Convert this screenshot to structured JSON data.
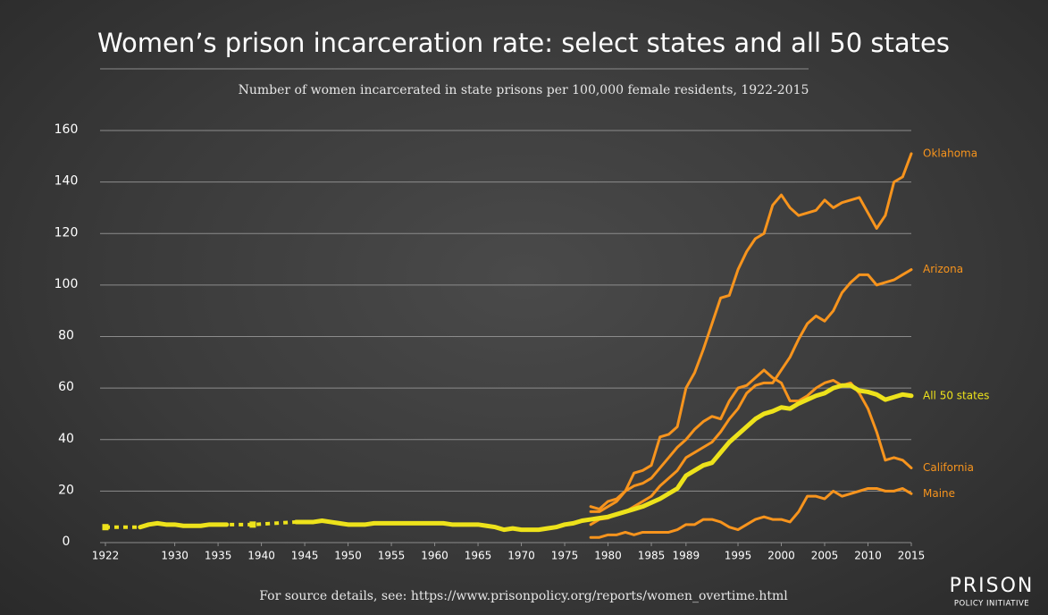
{
  "chart_data": {
    "type": "line",
    "title": "Women’s prison incarceration rate: select states and all 50 states",
    "subtitle": "Number of women incarcerated in state prisons per 100,000 female residents, 1922-2015",
    "note": "For source details, see: https://www.prisonpolicy.org/reports/women_overtime.html",
    "logo": {
      "name": "PRISON",
      "tagline": "POLICY INITIATIVE"
    },
    "xlim": [
      1922,
      2015
    ],
    "xticks": [
      1922,
      1930,
      1935,
      1940,
      1945,
      1950,
      1955,
      1960,
      1965,
      1970,
      1975,
      1980,
      1985,
      1989,
      1995,
      2000,
      2005,
      2010,
      2015
    ],
    "ylim": [
      0,
      160
    ],
    "yticks": [
      0,
      20,
      40,
      60,
      80,
      100,
      120,
      140,
      160
    ],
    "grid": true,
    "x": [
      1922,
      1923,
      1924,
      1925,
      1926,
      1927,
      1928,
      1929,
      1930,
      1931,
      1932,
      1933,
      1934,
      1935,
      1936,
      1937,
      1938,
      1939,
      1940,
      1941,
      1942,
      1943,
      1944,
      1945,
      1946,
      1947,
      1948,
      1949,
      1950,
      1951,
      1952,
      1953,
      1954,
      1955,
      1956,
      1957,
      1958,
      1959,
      1960,
      1961,
      1962,
      1963,
      1964,
      1965,
      1966,
      1967,
      1968,
      1969,
      1970,
      1971,
      1972,
      1973,
      1974,
      1975,
      1976,
      1977,
      1978,
      1979,
      1980,
      1981,
      1982,
      1983,
      1984,
      1985,
      1986,
      1987,
      1988,
      1989,
      1990,
      1991,
      1992,
      1993,
      1994,
      1995,
      1996,
      1997,
      1998,
      1999,
      2000,
      2001,
      2002,
      2003,
      2004,
      2005,
      2006,
      2007,
      2008,
      2009,
      2010,
      2011,
      2012,
      2013,
      2014,
      2015
    ],
    "series": [
      {
        "name": "Oklahoma",
        "color": "#f7941d",
        "width": 3,
        "values": [
          null,
          null,
          null,
          null,
          null,
          null,
          null,
          null,
          null,
          null,
          null,
          null,
          null,
          null,
          null,
          null,
          null,
          null,
          null,
          null,
          null,
          null,
          null,
          null,
          null,
          null,
          null,
          null,
          null,
          null,
          null,
          null,
          null,
          null,
          null,
          null,
          null,
          null,
          null,
          null,
          null,
          null,
          null,
          null,
          null,
          null,
          null,
          null,
          null,
          null,
          null,
          null,
          null,
          null,
          null,
          null,
          14,
          13,
          16,
          17,
          20,
          27,
          28,
          30,
          41,
          42,
          45,
          60,
          66,
          75,
          85,
          95,
          96,
          106,
          113,
          118,
          120,
          131,
          135,
          130,
          127,
          128,
          129,
          133,
          130,
          132,
          133,
          134,
          128,
          122,
          127,
          140,
          142,
          151
        ]
      },
      {
        "name": "Arizona",
        "color": "#f7941d",
        "width": 3,
        "values": [
          null,
          null,
          null,
          null,
          null,
          null,
          null,
          null,
          null,
          null,
          null,
          null,
          null,
          null,
          null,
          null,
          null,
          null,
          null,
          null,
          null,
          null,
          null,
          null,
          null,
          null,
          null,
          null,
          null,
          null,
          null,
          null,
          null,
          null,
          null,
          null,
          null,
          null,
          null,
          null,
          null,
          null,
          null,
          null,
          null,
          null,
          null,
          null,
          null,
          null,
          null,
          null,
          null,
          null,
          null,
          null,
          7,
          9,
          9.5,
          11,
          12,
          14,
          16,
          18,
          22,
          25,
          28,
          33,
          35,
          37,
          39,
          43,
          48,
          52,
          58,
          61,
          62,
          62,
          67,
          72,
          79,
          85,
          88,
          86,
          90,
          97,
          101,
          104,
          104,
          100,
          101,
          102,
          104,
          106
        ]
      },
      {
        "name": "California",
        "color": "#f7941d",
        "width": 3,
        "values": [
          null,
          null,
          null,
          null,
          null,
          null,
          null,
          null,
          null,
          null,
          null,
          null,
          null,
          null,
          null,
          null,
          null,
          null,
          null,
          null,
          null,
          null,
          null,
          null,
          null,
          null,
          null,
          null,
          null,
          null,
          null,
          null,
          null,
          null,
          null,
          null,
          null,
          null,
          null,
          null,
          null,
          null,
          null,
          null,
          null,
          null,
          null,
          null,
          null,
          null,
          null,
          null,
          null,
          null,
          null,
          null,
          12,
          12,
          14,
          16,
          20,
          22,
          23,
          25,
          29,
          33,
          37,
          40,
          44,
          47,
          49,
          48,
          55,
          60,
          61,
          64,
          67,
          64,
          62,
          55,
          55,
          57,
          60,
          62,
          63,
          61,
          62,
          58,
          52,
          43,
          32,
          33,
          32,
          29
        ]
      },
      {
        "name": "Maine",
        "color": "#f7941d",
        "width": 3,
        "values": [
          null,
          null,
          null,
          null,
          null,
          null,
          null,
          null,
          null,
          null,
          null,
          null,
          null,
          null,
          null,
          null,
          null,
          null,
          null,
          null,
          null,
          null,
          null,
          null,
          null,
          null,
          null,
          null,
          null,
          null,
          null,
          null,
          null,
          null,
          null,
          null,
          null,
          null,
          null,
          null,
          null,
          null,
          null,
          null,
          null,
          null,
          null,
          null,
          null,
          null,
          null,
          null,
          null,
          null,
          null,
          null,
          2,
          2,
          3,
          3,
          4,
          3,
          4,
          4,
          4,
          4,
          5,
          7,
          7,
          9,
          9,
          8,
          6,
          5,
          7,
          9,
          10,
          9,
          9,
          8,
          12,
          18,
          18,
          17,
          20,
          18,
          19,
          20,
          21,
          21,
          20,
          20,
          21,
          19
        ]
      },
      {
        "name": "All 50 states",
        "color": "#ede21b",
        "width": 5,
        "values": [
          6,
          null,
          null,
          null,
          6,
          7,
          7.5,
          7,
          7,
          6.5,
          6.5,
          6.5,
          7,
          7,
          7,
          null,
          null,
          7,
          null,
          null,
          null,
          null,
          8,
          8,
          8,
          8.5,
          8,
          7.5,
          7,
          7,
          7,
          7.5,
          7.5,
          7.5,
          7.5,
          7.5,
          7.5,
          7.5,
          7.5,
          7.5,
          7,
          7,
          7,
          7,
          6.5,
          6,
          5,
          5.5,
          5,
          5,
          5,
          5.5,
          6,
          7,
          7.5,
          8.5,
          9,
          9.5,
          10,
          11,
          12,
          13,
          14,
          15.5,
          17,
          19,
          21,
          26,
          28,
          30,
          31,
          35,
          39,
          42,
          45,
          48,
          50,
          51,
          52.5,
          52,
          54,
          55.5,
          57,
          58,
          60,
          61,
          61,
          59,
          58.5,
          57.5,
          55.5,
          56.5,
          57.5,
          57
        ]
      }
    ]
  }
}
